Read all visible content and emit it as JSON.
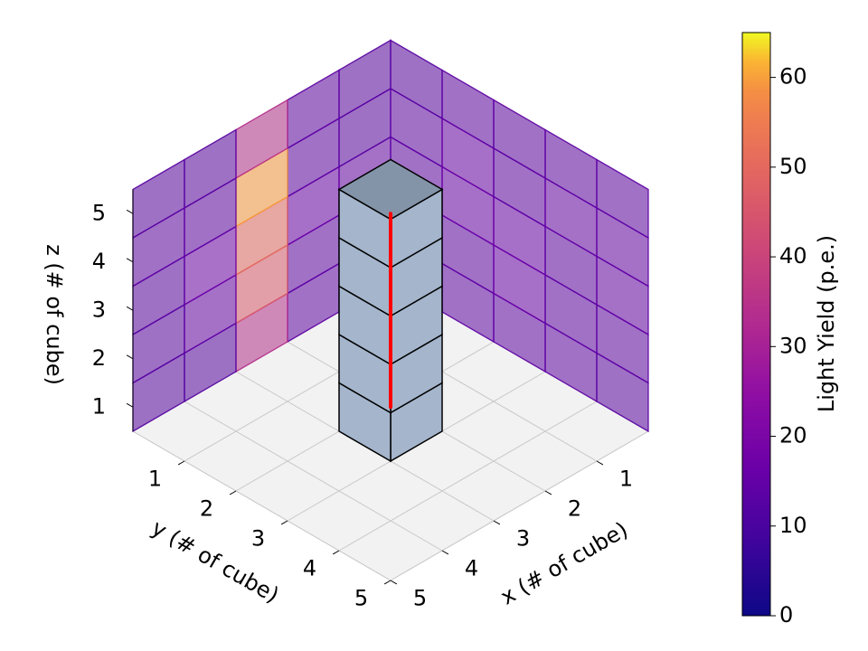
{
  "chart_data": {
    "type": "heatmap",
    "projection": "3d",
    "xlabel": "x (# of cube)",
    "ylabel": "y (# of cube)",
    "zlabel": "z (# of cube)",
    "x_ticks": [
      "1",
      "2",
      "3",
      "4",
      "5"
    ],
    "y_ticks": [
      "1",
      "2",
      "3",
      "4",
      "5"
    ],
    "z_ticks": [
      "1",
      "2",
      "3",
      "4",
      "5"
    ],
    "xlim": [
      0,
      5
    ],
    "ylim": [
      0,
      5
    ],
    "zlim": [
      0,
      5
    ],
    "grid": true,
    "colorbar": {
      "label": "Light Yield (p.e.)",
      "ticks": [
        "0",
        "10",
        "20",
        "30",
        "40",
        "50",
        "60"
      ],
      "range": [
        0,
        65
      ],
      "colormap": "plasma"
    },
    "projection_planes": [
      {
        "name": "XZ projection (back wall at y = 5)",
        "rows_from_bottom_z": [
          1,
          2,
          3,
          4,
          5
        ],
        "columns_x": [
          1,
          2,
          3,
          4,
          5
        ],
        "values": [
          [
            14,
            14,
            34,
            12,
            12
          ],
          [
            14,
            14,
            46,
            15,
            13
          ],
          [
            15,
            16,
            50,
            17,
            13
          ],
          [
            13,
            14,
            60,
            14,
            14
          ],
          [
            13,
            14,
            34,
            13,
            13
          ]
        ]
      },
      {
        "name": "YZ projection (back wall at x = 5)",
        "rows_from_bottom_z": [
          1,
          2,
          3,
          4,
          5
        ],
        "columns_y": [
          1,
          2,
          3,
          4,
          5
        ],
        "values": [
          [
            14,
            14,
            14,
            14,
            13
          ],
          [
            14,
            14,
            16,
            14,
            14
          ],
          [
            14,
            16,
            16,
            14,
            15
          ],
          [
            14,
            16,
            14,
            15,
            15
          ],
          [
            13,
            14,
            14,
            14,
            14
          ]
        ]
      }
    ],
    "cube_column": {
      "x": 3,
      "y": 3,
      "z_from": 0,
      "z_to": 5
    },
    "track": {
      "x": 2.5,
      "y": 2.5,
      "z_from": 0.5,
      "z_to": 4.5,
      "color": "#ff0000"
    }
  }
}
